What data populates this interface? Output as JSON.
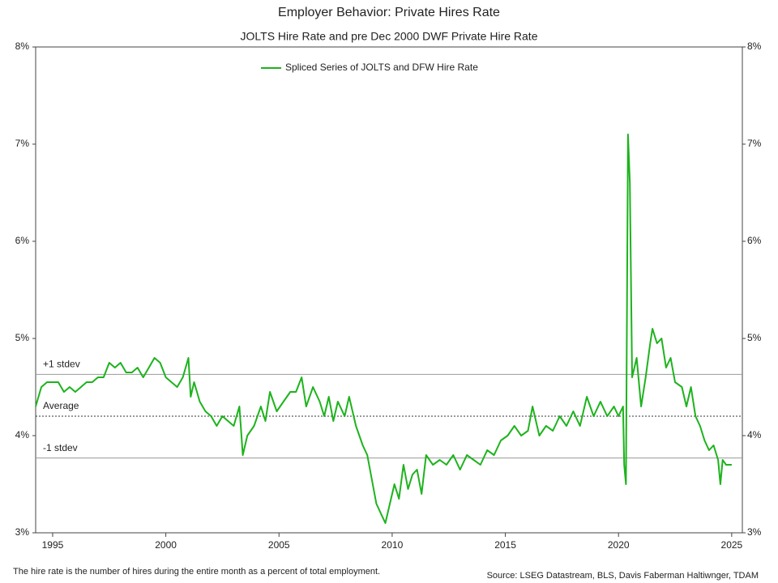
{
  "chart_data": {
    "type": "line",
    "title": "Employer Behavior: Private Hires Rate",
    "subtitle": "JOLTS Hire Rate and pre Dec 2000 DWF Private Hire Rate",
    "footnote": "The hire rate is the number of hires during the entire month as a percent of total employment.",
    "source": "Source: LSEG Datastream, BLS, Davis Faberman Haltiwnger, TDAM",
    "x": [
      1994.25,
      1994.5,
      1994.75,
      1995,
      1995.25,
      1995.5,
      1995.75,
      1996,
      1996.25,
      1996.5,
      1996.75,
      1997,
      1997.25,
      1997.5,
      1997.75,
      1998,
      1998.25,
      1998.5,
      1998.75,
      1999,
      1999.25,
      1999.5,
      1999.75,
      2000,
      2000.25,
      2000.5,
      2000.75,
      2001.0,
      2001.1,
      2001.25,
      2001.5,
      2001.75,
      2002,
      2002.25,
      2002.5,
      2002.75,
      2003,
      2003.25,
      2003.4,
      2003.6,
      2003.9,
      2004.2,
      2004.4,
      2004.6,
      2004.9,
      2005.2,
      2005.5,
      2005.75,
      2006,
      2006.2,
      2006.5,
      2006.8,
      2007,
      2007.2,
      2007.4,
      2007.6,
      2007.9,
      2008.1,
      2008.4,
      2008.7,
      2008.9,
      2009.1,
      2009.3,
      2009.5,
      2009.7,
      2009.9,
      2010.1,
      2010.3,
      2010.5,
      2010.7,
      2010.9,
      2011.1,
      2011.3,
      2011.5,
      2011.8,
      2012.1,
      2012.4,
      2012.7,
      2013.0,
      2013.3,
      2013.6,
      2013.9,
      2014.2,
      2014.5,
      2014.8,
      2015.1,
      2015.4,
      2015.7,
      2016.0,
      2016.2,
      2016.5,
      2016.8,
      2017.1,
      2017.4,
      2017.7,
      2018.0,
      2018.3,
      2018.6,
      2018.9,
      2019.2,
      2019.5,
      2019.8,
      2020.0,
      2020.2,
      2020.25,
      2020.33,
      2020.42,
      2020.5,
      2020.6,
      2020.8,
      2021.0,
      2021.2,
      2021.4,
      2021.5,
      2021.7,
      2021.9,
      2022.1,
      2022.3,
      2022.5,
      2022.8,
      2023.0,
      2023.2,
      2023.4,
      2023.6,
      2023.8,
      2024.0,
      2024.2,
      2024.4,
      2024.5,
      2024.6,
      2024.75,
      2025.0
    ],
    "series": [
      {
        "name": "Spliced Series of JOLTS and DFW Hire Rate",
        "color": "#1db31d",
        "values": [
          4.3,
          4.5,
          4.55,
          4.55,
          4.55,
          4.45,
          4.5,
          4.45,
          4.5,
          4.55,
          4.55,
          4.6,
          4.6,
          4.75,
          4.7,
          4.75,
          4.65,
          4.65,
          4.7,
          4.6,
          4.7,
          4.8,
          4.75,
          4.6,
          4.55,
          4.5,
          4.6,
          4.8,
          4.4,
          4.55,
          4.35,
          4.25,
          4.2,
          4.1,
          4.2,
          4.15,
          4.1,
          4.3,
          3.8,
          4.0,
          4.1,
          4.3,
          4.15,
          4.45,
          4.25,
          4.35,
          4.45,
          4.45,
          4.6,
          4.3,
          4.5,
          4.35,
          4.2,
          4.4,
          4.15,
          4.35,
          4.2,
          4.4,
          4.1,
          3.9,
          3.8,
          3.55,
          3.3,
          3.2,
          3.1,
          3.3,
          3.5,
          3.35,
          3.7,
          3.45,
          3.6,
          3.65,
          3.4,
          3.8,
          3.7,
          3.75,
          3.7,
          3.8,
          3.65,
          3.8,
          3.75,
          3.7,
          3.85,
          3.8,
          3.95,
          4.0,
          4.1,
          4.0,
          4.05,
          4.3,
          4.0,
          4.1,
          4.05,
          4.2,
          4.1,
          4.25,
          4.1,
          4.4,
          4.2,
          4.35,
          4.2,
          4.3,
          4.2,
          4.3,
          3.7,
          3.5,
          7.1,
          6.6,
          4.6,
          4.8,
          4.3,
          4.6,
          4.95,
          5.1,
          4.95,
          5.0,
          4.7,
          4.8,
          4.55,
          4.5,
          4.3,
          4.5,
          4.2,
          4.1,
          3.95,
          3.85,
          3.9,
          3.75,
          3.5,
          3.75,
          3.7,
          3.7
        ]
      }
    ],
    "reference_lines": [
      {
        "label": "+1 stdev",
        "value": 4.63
      },
      {
        "label": "Average",
        "value": 4.2
      },
      {
        "label": "-1 stdev",
        "value": 3.77
      }
    ],
    "xlim": [
      1994.25,
      2025.47
    ],
    "xticks": [
      1995,
      2000,
      2005,
      2010,
      2015,
      2020,
      2025
    ],
    "ylim": [
      3,
      8
    ],
    "yticks": [
      {
        "value": 3,
        "label": "3%"
      },
      {
        "value": 4,
        "label": "4%"
      },
      {
        "value": 5,
        "label": "5%"
      },
      {
        "value": 6,
        "label": "6%"
      },
      {
        "value": 7,
        "label": "7%"
      },
      {
        "value": 8,
        "label": "8%"
      }
    ],
    "legend": "top",
    "grid": false
  }
}
